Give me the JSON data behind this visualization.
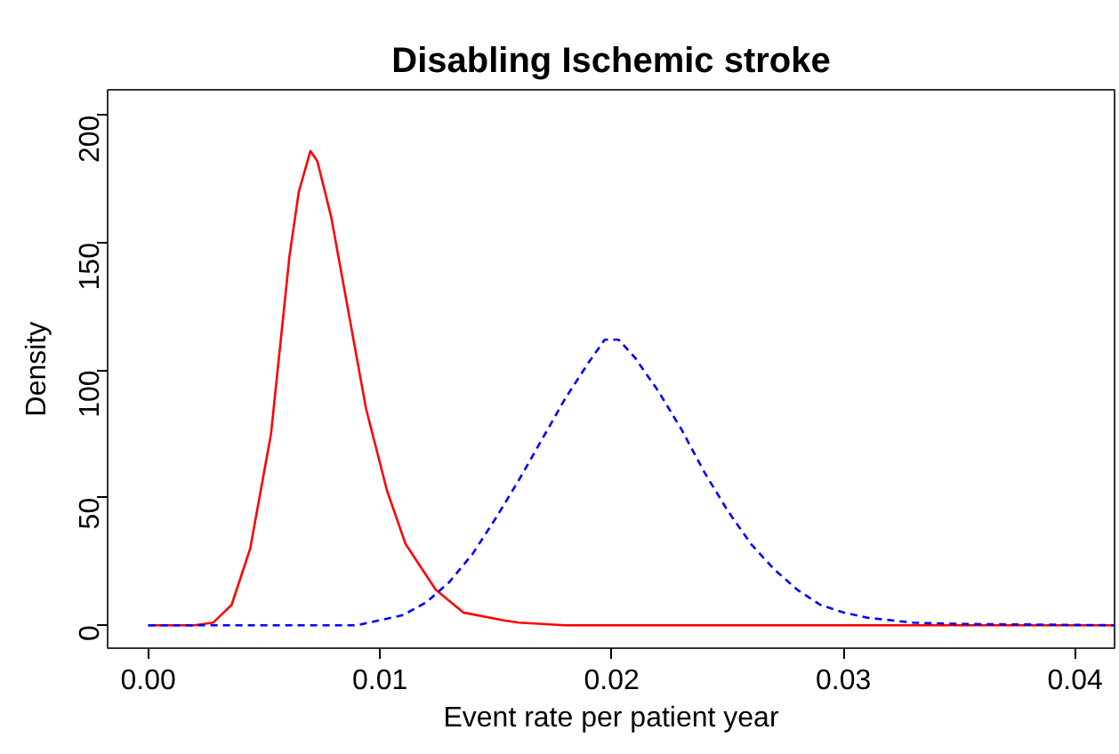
{
  "chart_data": {
    "type": "line",
    "title": "Disabling Ischemic stroke",
    "xlabel": "Event rate per patient year",
    "ylabel": "Density",
    "xlim": [
      -0.00175,
      0.0417
    ],
    "ylim": [
      -9,
      210
    ],
    "xticks": [
      {
        "value": 0,
        "label": "0.00"
      },
      {
        "value": 0.01,
        "label": "0.01"
      },
      {
        "value": 0.02,
        "label": "0.02"
      },
      {
        "value": 0.03,
        "label": "0.03"
      },
      {
        "value": 0.04,
        "label": "0.04"
      }
    ],
    "yticks": [
      0,
      50,
      100,
      150,
      200
    ],
    "grid": false,
    "series": [
      {
        "color": "#ff0000",
        "line_style": "solid",
        "x": [
          0,
          0.002,
          0.0028,
          0.0036,
          0.0044,
          0.0053,
          0.0057,
          0.0061,
          0.0065,
          0.007,
          0.0073,
          0.0079,
          0.0086,
          0.0094,
          0.0103,
          0.0111,
          0.0124,
          0.0136,
          0.0153,
          0.016,
          0.018,
          0.025,
          0.0417
        ],
        "values": [
          0,
          0,
          1,
          8,
          30,
          75,
          110,
          145,
          170,
          186,
          182,
          160,
          125,
          85,
          53,
          32,
          14,
          5,
          2,
          1,
          0,
          0,
          0
        ]
      },
      {
        "color": "#0000ff",
        "line_style": "dashed",
        "x": [
          0,
          0.009,
          0.01,
          0.011,
          0.012,
          0.013,
          0.014,
          0.015,
          0.016,
          0.017,
          0.018,
          0.019,
          0.0197,
          0.0203,
          0.021,
          0.022,
          0.023,
          0.024,
          0.025,
          0.026,
          0.027,
          0.028,
          0.029,
          0.03,
          0.031,
          0.033,
          0.035,
          0.0417
        ],
        "values": [
          0,
          0,
          2,
          4,
          9,
          17,
          28,
          42,
          57,
          73,
          89,
          103,
          112,
          112,
          105,
          92,
          77,
          60,
          45,
          32,
          22,
          14,
          8,
          5,
          3,
          1,
          0.5,
          0
        ]
      }
    ]
  }
}
